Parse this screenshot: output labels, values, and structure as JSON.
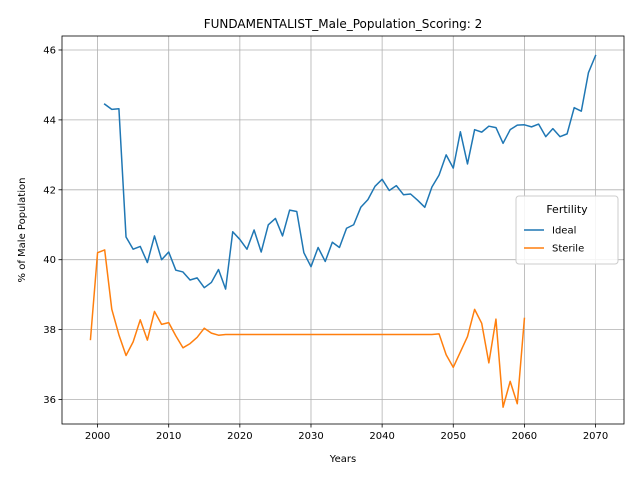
{
  "chart_data": {
    "type": "line",
    "title": "FUNDAMENTALIST_Male_Population_Scoring: 2",
    "xlabel": "Years",
    "ylabel": "% of Male Population",
    "xlim": [
      1995,
      2074
    ],
    "ylim": [
      35.3,
      46.4
    ],
    "xticks": [
      2000,
      2010,
      2020,
      2030,
      2040,
      2050,
      2060,
      2070
    ],
    "yticks": [
      36,
      38,
      40,
      42,
      44,
      46
    ],
    "grid": true,
    "legend": {
      "title": "Fertility",
      "placement": "center-right"
    },
    "series": [
      {
        "name": "Ideal",
        "color": "#1f77b4",
        "x": [
          2001,
          2002,
          2003,
          2004,
          2005,
          2006,
          2007,
          2008,
          2009,
          2010,
          2011,
          2012,
          2013,
          2014,
          2015,
          2016,
          2017,
          2018,
          2019,
          2020,
          2021,
          2022,
          2023,
          2024,
          2025,
          2026,
          2027,
          2028,
          2029,
          2030,
          2031,
          2032,
          2033,
          2034,
          2035,
          2036,
          2037,
          2038,
          2039,
          2040,
          2041,
          2042,
          2043,
          2044,
          2045,
          2046,
          2047,
          2048,
          2049,
          2050,
          2051,
          2052,
          2053,
          2054,
          2055,
          2056,
          2057,
          2058,
          2059,
          2060,
          2061,
          2062,
          2063,
          2064,
          2065,
          2066,
          2067,
          2068,
          2069,
          2070
        ],
        "values": [
          44.45,
          44.3,
          44.32,
          40.65,
          40.3,
          40.38,
          39.92,
          40.68,
          40.0,
          40.22,
          39.7,
          39.65,
          39.42,
          39.48,
          39.2,
          39.35,
          39.72,
          39.16,
          40.8,
          40.58,
          40.3,
          40.85,
          40.22,
          41.0,
          41.18,
          40.68,
          41.42,
          41.38,
          40.2,
          39.8,
          40.35,
          39.95,
          40.5,
          40.35,
          40.9,
          41.0,
          41.5,
          41.72,
          42.1,
          42.3,
          41.98,
          42.12,
          41.86,
          41.88,
          41.7,
          41.5,
          42.08,
          42.42,
          43.0,
          42.62,
          43.66,
          42.74,
          43.72,
          43.65,
          43.82,
          43.78,
          43.33,
          43.72,
          43.85,
          43.86,
          43.8,
          43.88,
          43.52,
          43.75,
          43.52,
          43.6,
          44.35,
          44.25,
          45.35,
          45.84
        ]
      },
      {
        "name": "Sterile",
        "color": "#ff7f0e",
        "x": [
          1999,
          2000,
          2001,
          2002,
          2003,
          2004,
          2005,
          2006,
          2007,
          2008,
          2009,
          2010,
          2011,
          2012,
          2013,
          2014,
          2015,
          2016,
          2017,
          2018,
          2019,
          2020,
          2021,
          2022,
          2023,
          2024,
          2025,
          2026,
          2027,
          2028,
          2029,
          2030,
          2031,
          2032,
          2033,
          2034,
          2035,
          2036,
          2037,
          2038,
          2039,
          2040,
          2041,
          2042,
          2043,
          2044,
          2045,
          2046,
          2047,
          2048,
          2049,
          2050,
          2051,
          2052,
          2053,
          2054,
          2055,
          2056,
          2057,
          2058,
          2059,
          2060
        ],
        "values": [
          37.72,
          40.2,
          40.28,
          38.58,
          37.85,
          37.26,
          37.65,
          38.28,
          37.7,
          38.52,
          38.15,
          38.2,
          37.82,
          37.48,
          37.6,
          37.78,
          38.04,
          37.9,
          37.84,
          37.86,
          37.86,
          37.86,
          37.86,
          37.86,
          37.86,
          37.86,
          37.86,
          37.86,
          37.86,
          37.86,
          37.86,
          37.86,
          37.86,
          37.86,
          37.86,
          37.86,
          37.86,
          37.86,
          37.86,
          37.86,
          37.86,
          37.86,
          37.86,
          37.86,
          37.86,
          37.86,
          37.86,
          37.86,
          37.86,
          37.88,
          37.28,
          36.92,
          37.36,
          37.8,
          38.58,
          38.18,
          37.05,
          38.3,
          35.78,
          36.52,
          35.88,
          38.32
        ]
      }
    ]
  }
}
